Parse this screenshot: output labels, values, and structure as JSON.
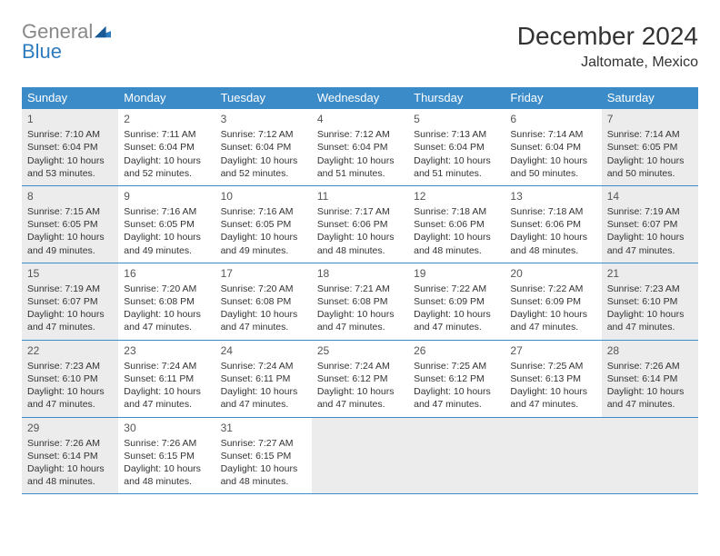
{
  "brand": {
    "gray": "General",
    "blue": "Blue"
  },
  "title": "December 2024",
  "location": "Jaltomate, Mexico",
  "colors": {
    "header_bg": "#3b8bc9",
    "header_text": "#ffffff",
    "border": "#3b8bc9",
    "shaded_bg": "#ececec",
    "body_text": "#333333",
    "logo_gray": "#888888",
    "logo_blue": "#2e7cc0"
  },
  "dayHeaders": [
    "Sunday",
    "Monday",
    "Tuesday",
    "Wednesday",
    "Thursday",
    "Friday",
    "Saturday"
  ],
  "weeks": [
    [
      {
        "n": "1",
        "shaded": true,
        "sunrise": "Sunrise: 7:10 AM",
        "sunset": "Sunset: 6:04 PM",
        "day": "Daylight: 10 hours and 53 minutes."
      },
      {
        "n": "2",
        "sunrise": "Sunrise: 7:11 AM",
        "sunset": "Sunset: 6:04 PM",
        "day": "Daylight: 10 hours and 52 minutes."
      },
      {
        "n": "3",
        "sunrise": "Sunrise: 7:12 AM",
        "sunset": "Sunset: 6:04 PM",
        "day": "Daylight: 10 hours and 52 minutes."
      },
      {
        "n": "4",
        "sunrise": "Sunrise: 7:12 AM",
        "sunset": "Sunset: 6:04 PM",
        "day": "Daylight: 10 hours and 51 minutes."
      },
      {
        "n": "5",
        "sunrise": "Sunrise: 7:13 AM",
        "sunset": "Sunset: 6:04 PM",
        "day": "Daylight: 10 hours and 51 minutes."
      },
      {
        "n": "6",
        "sunrise": "Sunrise: 7:14 AM",
        "sunset": "Sunset: 6:04 PM",
        "day": "Daylight: 10 hours and 50 minutes."
      },
      {
        "n": "7",
        "shaded": true,
        "sunrise": "Sunrise: 7:14 AM",
        "sunset": "Sunset: 6:05 PM",
        "day": "Daylight: 10 hours and 50 minutes."
      }
    ],
    [
      {
        "n": "8",
        "shaded": true,
        "sunrise": "Sunrise: 7:15 AM",
        "sunset": "Sunset: 6:05 PM",
        "day": "Daylight: 10 hours and 49 minutes."
      },
      {
        "n": "9",
        "sunrise": "Sunrise: 7:16 AM",
        "sunset": "Sunset: 6:05 PM",
        "day": "Daylight: 10 hours and 49 minutes."
      },
      {
        "n": "10",
        "sunrise": "Sunrise: 7:16 AM",
        "sunset": "Sunset: 6:05 PM",
        "day": "Daylight: 10 hours and 49 minutes."
      },
      {
        "n": "11",
        "sunrise": "Sunrise: 7:17 AM",
        "sunset": "Sunset: 6:06 PM",
        "day": "Daylight: 10 hours and 48 minutes."
      },
      {
        "n": "12",
        "sunrise": "Sunrise: 7:18 AM",
        "sunset": "Sunset: 6:06 PM",
        "day": "Daylight: 10 hours and 48 minutes."
      },
      {
        "n": "13",
        "sunrise": "Sunrise: 7:18 AM",
        "sunset": "Sunset: 6:06 PM",
        "day": "Daylight: 10 hours and 48 minutes."
      },
      {
        "n": "14",
        "shaded": true,
        "sunrise": "Sunrise: 7:19 AM",
        "sunset": "Sunset: 6:07 PM",
        "day": "Daylight: 10 hours and 47 minutes."
      }
    ],
    [
      {
        "n": "15",
        "shaded": true,
        "sunrise": "Sunrise: 7:19 AM",
        "sunset": "Sunset: 6:07 PM",
        "day": "Daylight: 10 hours and 47 minutes."
      },
      {
        "n": "16",
        "sunrise": "Sunrise: 7:20 AM",
        "sunset": "Sunset: 6:08 PM",
        "day": "Daylight: 10 hours and 47 minutes."
      },
      {
        "n": "17",
        "sunrise": "Sunrise: 7:20 AM",
        "sunset": "Sunset: 6:08 PM",
        "day": "Daylight: 10 hours and 47 minutes."
      },
      {
        "n": "18",
        "sunrise": "Sunrise: 7:21 AM",
        "sunset": "Sunset: 6:08 PM",
        "day": "Daylight: 10 hours and 47 minutes."
      },
      {
        "n": "19",
        "sunrise": "Sunrise: 7:22 AM",
        "sunset": "Sunset: 6:09 PM",
        "day": "Daylight: 10 hours and 47 minutes."
      },
      {
        "n": "20",
        "sunrise": "Sunrise: 7:22 AM",
        "sunset": "Sunset: 6:09 PM",
        "day": "Daylight: 10 hours and 47 minutes."
      },
      {
        "n": "21",
        "shaded": true,
        "sunrise": "Sunrise: 7:23 AM",
        "sunset": "Sunset: 6:10 PM",
        "day": "Daylight: 10 hours and 47 minutes."
      }
    ],
    [
      {
        "n": "22",
        "shaded": true,
        "sunrise": "Sunrise: 7:23 AM",
        "sunset": "Sunset: 6:10 PM",
        "day": "Daylight: 10 hours and 47 minutes."
      },
      {
        "n": "23",
        "sunrise": "Sunrise: 7:24 AM",
        "sunset": "Sunset: 6:11 PM",
        "day": "Daylight: 10 hours and 47 minutes."
      },
      {
        "n": "24",
        "sunrise": "Sunrise: 7:24 AM",
        "sunset": "Sunset: 6:11 PM",
        "day": "Daylight: 10 hours and 47 minutes."
      },
      {
        "n": "25",
        "sunrise": "Sunrise: 7:24 AM",
        "sunset": "Sunset: 6:12 PM",
        "day": "Daylight: 10 hours and 47 minutes."
      },
      {
        "n": "26",
        "sunrise": "Sunrise: 7:25 AM",
        "sunset": "Sunset: 6:12 PM",
        "day": "Daylight: 10 hours and 47 minutes."
      },
      {
        "n": "27",
        "sunrise": "Sunrise: 7:25 AM",
        "sunset": "Sunset: 6:13 PM",
        "day": "Daylight: 10 hours and 47 minutes."
      },
      {
        "n": "28",
        "shaded": true,
        "sunrise": "Sunrise: 7:26 AM",
        "sunset": "Sunset: 6:14 PM",
        "day": "Daylight: 10 hours and 47 minutes."
      }
    ],
    [
      {
        "n": "29",
        "shaded": true,
        "sunrise": "Sunrise: 7:26 AM",
        "sunset": "Sunset: 6:14 PM",
        "day": "Daylight: 10 hours and 48 minutes."
      },
      {
        "n": "30",
        "sunrise": "Sunrise: 7:26 AM",
        "sunset": "Sunset: 6:15 PM",
        "day": "Daylight: 10 hours and 48 minutes."
      },
      {
        "n": "31",
        "sunrise": "Sunrise: 7:27 AM",
        "sunset": "Sunset: 6:15 PM",
        "day": "Daylight: 10 hours and 48 minutes."
      },
      {
        "empty": true
      },
      {
        "empty": true
      },
      {
        "empty": true
      },
      {
        "empty": true
      }
    ]
  ]
}
